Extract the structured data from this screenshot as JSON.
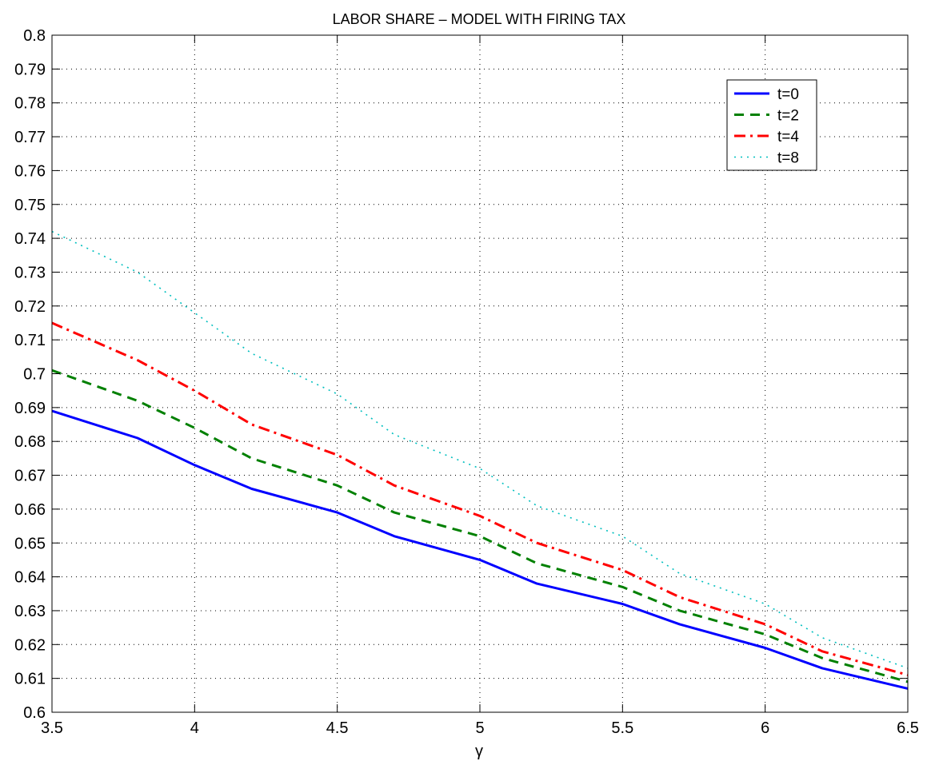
{
  "chart_data": {
    "type": "line",
    "title": "LABOR SHARE – MODEL WITH FIRING TAX",
    "xlabel": "γ",
    "ylabel": "",
    "xlim": [
      3.5,
      6.5
    ],
    "ylim": [
      0.6,
      0.8
    ],
    "x_ticks": [
      "3.5",
      "4",
      "4.5",
      "5",
      "5.5",
      "6",
      "6.5"
    ],
    "y_ticks": [
      "0.6",
      "0.61",
      "0.62",
      "0.63",
      "0.64",
      "0.65",
      "0.66",
      "0.67",
      "0.68",
      "0.69",
      "0.7",
      "0.71",
      "0.72",
      "0.73",
      "0.74",
      "0.75",
      "0.76",
      "0.77",
      "0.78",
      "0.79",
      "0.8"
    ],
    "grid": true,
    "legend_position": "top-right",
    "x": [
      3.5,
      3.8,
      4.0,
      4.2,
      4.5,
      4.7,
      5.0,
      5.2,
      5.5,
      5.7,
      6.0,
      6.2,
      6.5
    ],
    "series": [
      {
        "name": "t=0",
        "color": "#0000ff",
        "style": "solid",
        "values": [
          0.689,
          0.681,
          0.673,
          0.666,
          0.659,
          0.652,
          0.645,
          0.638,
          0.632,
          0.626,
          0.619,
          0.613,
          0.607
        ]
      },
      {
        "name": "t=2",
        "color": "#008000",
        "style": "dashed",
        "values": [
          0.701,
          0.692,
          0.684,
          0.675,
          0.667,
          0.659,
          0.652,
          0.644,
          0.637,
          0.63,
          0.623,
          0.616,
          0.609
        ]
      },
      {
        "name": "t=4",
        "color": "#ff0000",
        "style": "dashdot",
        "values": [
          0.715,
          0.704,
          0.695,
          0.685,
          0.676,
          0.667,
          0.658,
          0.65,
          0.642,
          0.634,
          0.626,
          0.618,
          0.611
        ]
      },
      {
        "name": "t=8",
        "color": "#00bfbf",
        "style": "dotted",
        "values": [
          0.742,
          0.73,
          0.718,
          0.706,
          0.694,
          0.682,
          0.672,
          0.661,
          0.652,
          0.641,
          0.632,
          0.622,
          0.613
        ]
      }
    ]
  }
}
